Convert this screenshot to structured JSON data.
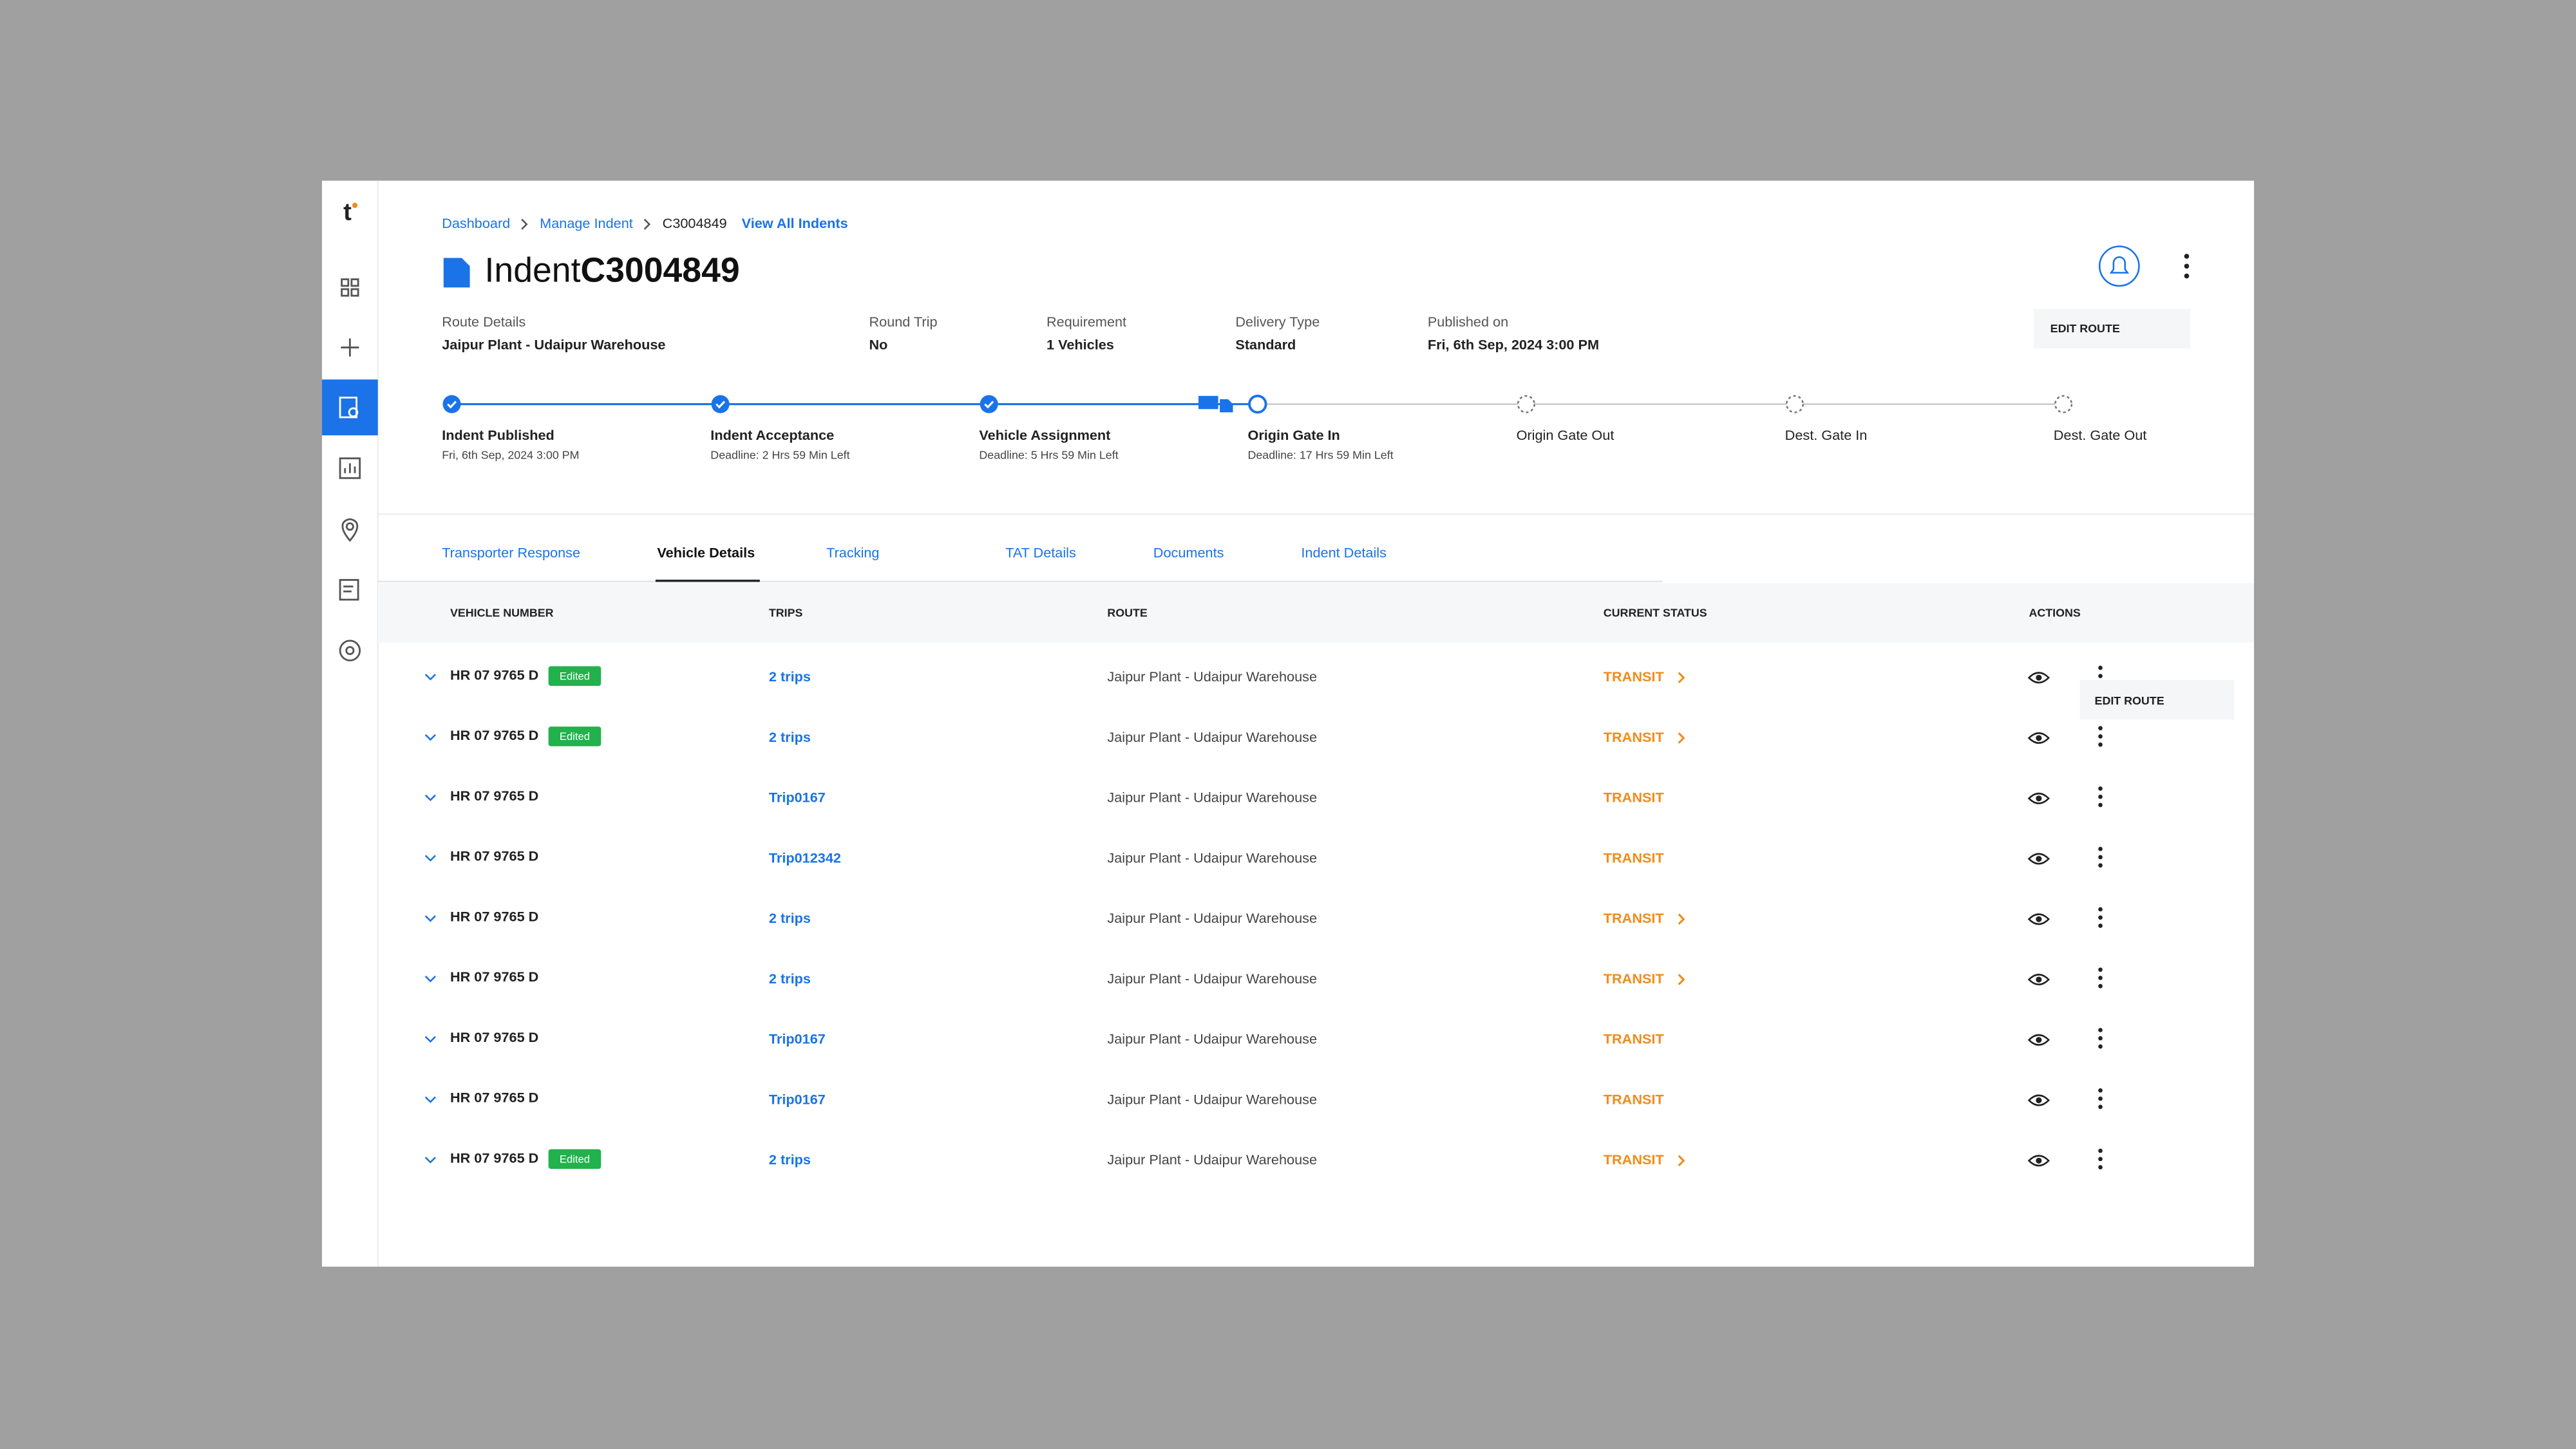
{
  "breadcrumb": [
    "Dashboard",
    "Manage Indent",
    "C3004849"
  ],
  "view_all": "View All Indents",
  "header": {
    "title_prefix": "Indent",
    "title_id": "C3004849",
    "edit_route": "EDIT ROUTE"
  },
  "summary": [
    {
      "label": "Route Details",
      "value": "Jaipur Plant - Udaipur Warehouse"
    },
    {
      "label": "Round Trip",
      "value": "No"
    },
    {
      "label": "Requirement",
      "value": "1 Vehicles"
    },
    {
      "label": "Delivery Type",
      "value": "Standard"
    },
    {
      "label": "Published on",
      "value": "Fri, 6th Sep, 2024 3:00 PM"
    }
  ],
  "steps": [
    {
      "label": "Indent Published",
      "sub": "Fri, 6th Sep, 2024 3:00 PM",
      "state": "done"
    },
    {
      "label": "Indent Acceptance",
      "sub": "Deadline: 2 Hrs 59 Min Left",
      "state": "done"
    },
    {
      "label": "Vehicle Assignment",
      "sub": "Deadline: 5 Hrs 59 Min Left",
      "state": "done"
    },
    {
      "label": "Origin Gate In",
      "sub": "Deadline: 17 Hrs 59 Min Left",
      "state": "current"
    },
    {
      "label": "Origin Gate Out",
      "state": "pending"
    },
    {
      "label": "Dest. Gate In",
      "state": "pending"
    },
    {
      "label": "Dest. Gate Out",
      "state": "pending"
    }
  ],
  "tabs": [
    "Transporter Response",
    "Vehicle Details",
    "Tracking",
    "TAT Details",
    "Documents",
    "Indent Details"
  ],
  "active_tab": 1,
  "table": {
    "columns": [
      "VEHICLE NUMBER",
      "TRIPS",
      "ROUTE",
      "CURRENT STATUS",
      "ACTIONS"
    ],
    "rows": [
      {
        "vehicle": "HR 07 9765 D",
        "tag": "Edited",
        "trips": "2 trips",
        "route": "Jaipur Plant - Udaipur Warehouse",
        "status": "TRANSIT",
        "expand": true
      },
      {
        "vehicle": "HR 07 9765 D",
        "tag": "Edited",
        "trips": "2 trips",
        "route": "Jaipur Plant - Udaipur Warehouse",
        "status": "TRANSIT",
        "expand": true
      },
      {
        "vehicle": "HR 07 9765 D",
        "trips": "Trip0167",
        "route": "Jaipur Plant - Udaipur Warehouse",
        "status": "TRANSIT",
        "expand": false
      },
      {
        "vehicle": "HR 07 9765 D",
        "trips": "Trip012342",
        "route": "Jaipur Plant - Udaipur Warehouse",
        "status": "TRANSIT",
        "expand": false
      },
      {
        "vehicle": "HR 07 9765 D",
        "trips": "2 trips",
        "route": "Jaipur Plant - Udaipur Warehouse",
        "status": "TRANSIT",
        "expand": true
      },
      {
        "vehicle": "HR 07 9765 D",
        "trips": "2 trips",
        "route": "Jaipur Plant - Udaipur Warehouse",
        "status": "TRANSIT",
        "expand": true
      },
      {
        "vehicle": "HR 07 9765 D",
        "trips": "Trip0167",
        "route": "Jaipur Plant - Udaipur Warehouse",
        "status": "TRANSIT",
        "expand": false
      },
      {
        "vehicle": "HR 07 9765 D",
        "trips": "Trip0167",
        "route": "Jaipur Plant - Udaipur Warehouse",
        "status": "TRANSIT",
        "expand": false
      },
      {
        "vehicle": "HR 07 9765 D",
        "tag": "Edited",
        "trips": "2 trips",
        "route": "Jaipur Plant - Udaipur Warehouse",
        "status": "TRANSIT",
        "expand": true
      }
    ]
  },
  "row_menu": "EDIT ROUTE"
}
